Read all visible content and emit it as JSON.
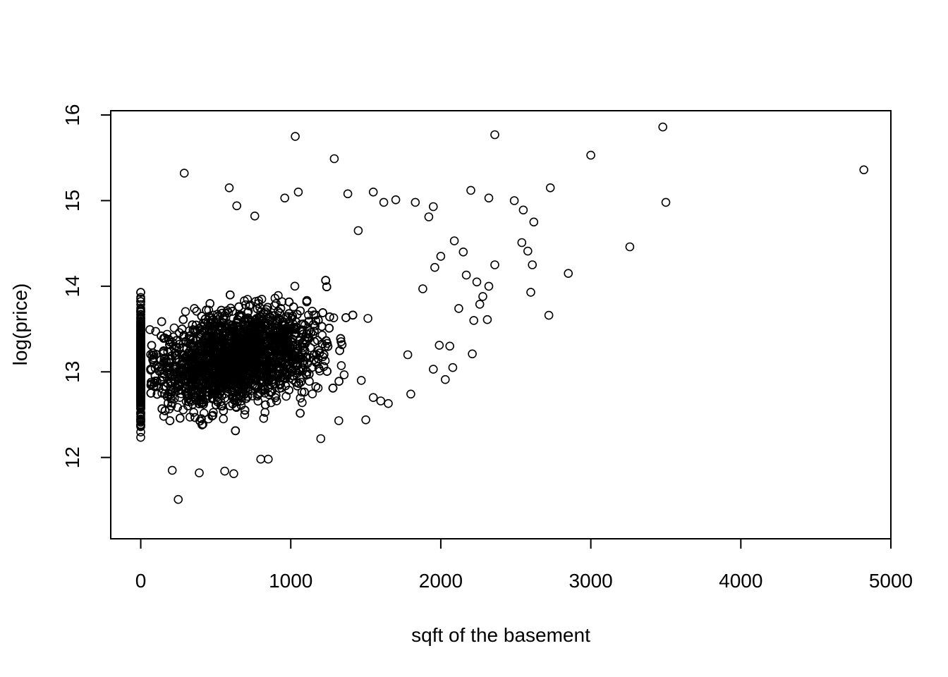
{
  "chart_data": {
    "type": "scatter",
    "title": "",
    "xlabel": "sqft of the basement",
    "ylabel": "log(price)",
    "xlim": [
      -200,
      5000
    ],
    "ylim": [
      11.05,
      16.05
    ],
    "x_ticks": [
      0,
      1000,
      2000,
      3000,
      4000,
      5000
    ],
    "x_tick_labels": [
      "0",
      "1000",
      "2000",
      "3000",
      "4000",
      "5000"
    ],
    "y_ticks": [
      12,
      13,
      14,
      15,
      16
    ],
    "y_tick_labels": [
      "12",
      "13",
      "14",
      "15",
      "16"
    ],
    "grid": false,
    "marker": "open-circle",
    "marker_color": "#000000",
    "points": [
      [
        1030,
        15.75
      ],
      [
        2360,
        15.77
      ],
      [
        3480,
        15.86
      ],
      [
        3000,
        15.53
      ],
      [
        4820,
        15.36
      ],
      [
        1290,
        15.49
      ],
      [
        3500,
        14.98
      ],
      [
        2730,
        15.15
      ],
      [
        2490,
        15.0
      ],
      [
        2320,
        15.03
      ],
      [
        2200,
        15.12
      ],
      [
        2550,
        14.89
      ],
      [
        2620,
        14.75
      ],
      [
        3260,
        14.46
      ],
      [
        2540,
        14.51
      ],
      [
        2580,
        14.41
      ],
      [
        2610,
        14.25
      ],
      [
        2850,
        14.15
      ],
      [
        2600,
        13.93
      ],
      [
        2720,
        13.66
      ],
      [
        2310,
        13.61
      ],
      [
        2360,
        14.25
      ],
      [
        2320,
        14.0
      ],
      [
        2220,
        13.6
      ],
      [
        2210,
        13.21
      ],
      [
        2030,
        12.91
      ],
      [
        2080,
        13.05
      ],
      [
        2060,
        13.3
      ],
      [
        290,
        15.32
      ],
      [
        590,
        15.15
      ],
      [
        250,
        11.51
      ],
      [
        620,
        11.81
      ],
      [
        560,
        11.84
      ],
      [
        390,
        11.82
      ],
      [
        210,
        11.85
      ],
      [
        800,
        11.98
      ],
      [
        850,
        11.98
      ],
      [
        1200,
        12.22
      ],
      [
        1500,
        12.44
      ],
      [
        1450,
        14.65
      ],
      [
        1620,
        14.98
      ],
      [
        1700,
        15.01
      ],
      [
        1830,
        14.98
      ],
      [
        1950,
        14.93
      ],
      [
        1550,
        15.1
      ],
      [
        1050,
        15.1
      ],
      [
        1380,
        15.08
      ],
      [
        960,
        15.03
      ],
      [
        760,
        14.82
      ],
      [
        640,
        14.94
      ],
      [
        1920,
        14.81
      ],
      [
        2000,
        14.35
      ],
      [
        2150,
        14.4
      ],
      [
        2090,
        14.53
      ],
      [
        1950,
        13.03
      ],
      [
        1800,
        12.74
      ],
      [
        1780,
        13.2
      ],
      [
        1990,
        13.31
      ],
      [
        1960,
        14.22
      ],
      [
        1880,
        13.97
      ],
      [
        2280,
        13.88
      ],
      [
        2260,
        13.79
      ],
      [
        2240,
        14.05
      ],
      [
        2170,
        14.13
      ],
      [
        2120,
        13.74
      ],
      [
        1650,
        12.63
      ],
      [
        1600,
        12.66
      ],
      [
        1550,
        12.7
      ],
      [
        1470,
        12.9
      ],
      [
        1320,
        12.43
      ]
    ]
  }
}
